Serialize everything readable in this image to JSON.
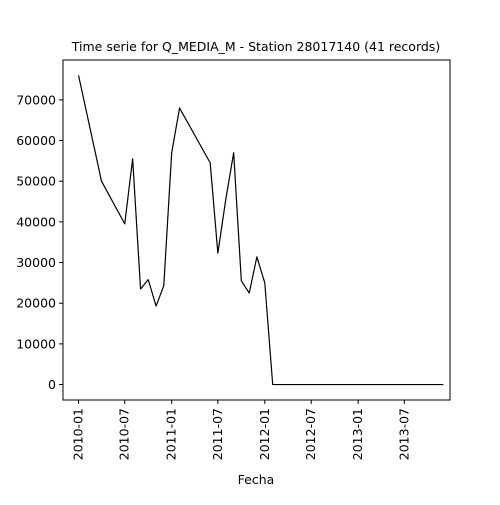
{
  "chart_data": {
    "type": "line",
    "title": "Time serie for Q_MEDIA_M - Station 28017140 (41 records)",
    "xlabel": "Fecha",
    "ylabel": "",
    "x_tick_labels": [
      "2010-01",
      "2010-07",
      "2011-01",
      "2011-07",
      "2012-01",
      "2012-07",
      "2013-01",
      "2013-07"
    ],
    "y_ticks": [
      0,
      10000,
      20000,
      30000,
      40000,
      50000,
      60000,
      70000
    ],
    "ylim": [
      -3800,
      79800
    ],
    "xlim": [
      "2009-11-01",
      "2013-12-27"
    ],
    "grid": false,
    "line_color": "#000000",
    "series": [
      {
        "x": [
          "2010-01-01",
          "2010-04-01",
          "2010-07-01",
          "2010-08-01",
          "2010-09-01",
          "2010-10-01",
          "2010-11-01",
          "2010-12-01",
          "2011-01-01",
          "2011-02-01",
          "2011-06-01",
          "2011-07-01",
          "2011-08-01",
          "2011-09-01",
          "2011-10-01",
          "2011-11-01",
          "2011-12-01",
          "2012-01-01",
          "2012-02-01",
          "2012-03-01",
          "2012-04-01",
          "2012-05-01",
          "2012-06-01",
          "2012-07-01",
          "2012-08-01",
          "2012-09-01",
          "2012-10-01",
          "2012-11-01",
          "2012-12-01",
          "2013-01-01",
          "2013-02-01",
          "2013-03-01",
          "2013-04-01",
          "2013-05-01",
          "2013-06-01",
          "2013-07-01",
          "2013-08-01",
          "2013-09-01",
          "2013-10-01",
          "2013-11-01",
          "2013-12-01"
        ],
        "y": [
          76000,
          50000,
          39500,
          55500,
          23500,
          25800,
          19300,
          24300,
          57000,
          68000,
          54500,
          32300,
          45500,
          57000,
          25500,
          22500,
          31400,
          25000,
          0,
          0,
          0,
          0,
          0,
          0,
          0,
          0,
          0,
          0,
          0,
          0,
          0,
          0,
          0,
          0,
          0,
          0,
          0,
          0,
          0,
          0,
          0
        ]
      }
    ]
  }
}
